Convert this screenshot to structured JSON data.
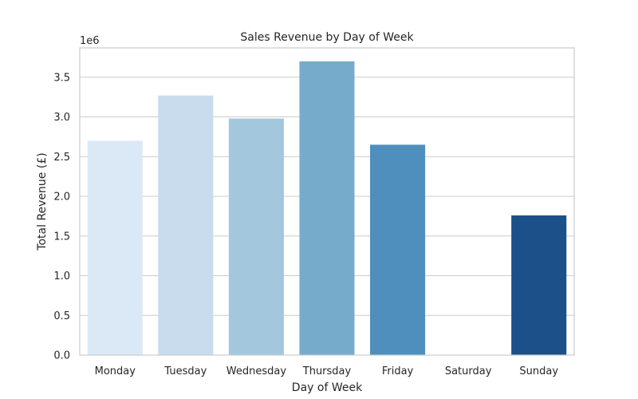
{
  "chart_data": {
    "type": "bar",
    "title": "Sales Revenue by Day of Week",
    "xlabel": "Day of Week",
    "ylabel": "Total Revenue (£)",
    "y_offset_label": "1e6",
    "categories": [
      "Monday",
      "Tuesday",
      "Wednesday",
      "Thursday",
      "Friday",
      "Saturday",
      "Sunday"
    ],
    "values": [
      2700000,
      3270000,
      2980000,
      3700000,
      2650000,
      0,
      1760000
    ],
    "colors": [
      "#dbe9f6",
      "#c8dcee",
      "#a3c8dd",
      "#77abcb",
      "#4f8fbd",
      "#2f72b2",
      "#1b5089"
    ],
    "ylim": [
      0,
      3870000
    ],
    "yticks": [
      0,
      500000,
      1000000,
      1500000,
      2000000,
      2500000,
      3000000,
      3500000
    ],
    "ytick_labels": [
      "0.0",
      "0.5",
      "1.0",
      "1.5",
      "2.0",
      "2.5",
      "3.0",
      "3.5"
    ],
    "grid": "y",
    "legend": "none"
  }
}
